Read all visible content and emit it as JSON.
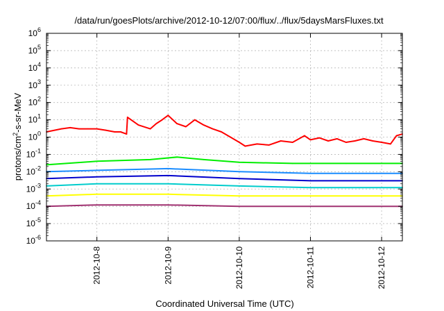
{
  "chart_data": {
    "type": "line",
    "title": "/data/run/goesPlots/archive/2012-10-12/07:00/flux/../flux/5daysMarsFluxes.txt",
    "xlabel": "Coordinated Universal Time (UTC)",
    "ylabel": {
      "prefix": "protons/cm",
      "sup": "2",
      "suffix": "-s-sr-MeV"
    },
    "y_scale": "log",
    "ylim": [
      1e-06,
      1000000.0
    ],
    "y_ticks": [
      {
        "base": "10",
        "exp": "-6",
        "value": 1e-06
      },
      {
        "base": "10",
        "exp": "-5",
        "value": 1e-05
      },
      {
        "base": "10",
        "exp": "-4",
        "value": 0.0001
      },
      {
        "base": "10",
        "exp": "-3",
        "value": 0.001
      },
      {
        "base": "10",
        "exp": "-2",
        "value": 0.01
      },
      {
        "base": "10",
        "exp": "-1",
        "value": 0.1
      },
      {
        "base": "10",
        "exp": "0",
        "value": 1
      },
      {
        "base": "10",
        "exp": "1",
        "value": 10
      },
      {
        "base": "10",
        "exp": "2",
        "value": 100
      },
      {
        "base": "10",
        "exp": "3",
        "value": 1000
      },
      {
        "base": "10",
        "exp": "4",
        "value": 10000
      },
      {
        "base": "10",
        "exp": "5",
        "value": 100000
      },
      {
        "base": "10",
        "exp": "6",
        "value": 1000000
      }
    ],
    "xlim": [
      "2012-10-07 07:00",
      "2012-10-12 07:00"
    ],
    "x_ticks": [
      {
        "label": "2012-10-8",
        "value": "2012-10-08"
      },
      {
        "label": "2012-10-9",
        "value": "2012-10-09"
      },
      {
        "label": "2012-10-10",
        "value": "2012-10-10"
      },
      {
        "label": "2012-10-11",
        "value": "2012-10-11"
      },
      {
        "label": "2012-10-12",
        "value": "2012-10-12"
      }
    ],
    "grid": true,
    "legend": false,
    "series": [
      {
        "color": "#ff0000",
        "x": [
          "2012-10-07 07:00",
          "2012-10-07 12:00",
          "2012-10-07 15:00",
          "2012-10-07 18:00",
          "2012-10-07 21:00",
          "2012-10-08 00:00",
          "2012-10-08 03:00",
          "2012-10-08 06:00",
          "2012-10-08 08:00",
          "2012-10-08 10:00",
          "2012-10-08 10:20",
          "2012-10-08 14:00",
          "2012-10-08 18:00",
          "2012-10-08 20:00",
          "2012-10-08 22:00",
          "2012-10-09 00:00",
          "2012-10-09 03:00",
          "2012-10-09 06:00",
          "2012-10-09 09:00",
          "2012-10-09 12:00",
          "2012-10-09 15:00",
          "2012-10-09 18:00",
          "2012-10-09 21:00",
          "2012-10-10 00:00",
          "2012-10-10 02:00",
          "2012-10-10 06:00",
          "2012-10-10 10:00",
          "2012-10-10 14:00",
          "2012-10-10 18:00",
          "2012-10-10 22:00",
          "2012-10-11 00:00",
          "2012-10-11 03:00",
          "2012-10-11 06:00",
          "2012-10-11 09:00",
          "2012-10-11 12:00",
          "2012-10-11 15:00",
          "2012-10-11 18:00",
          "2012-10-11 21:00",
          "2012-10-12 00:00",
          "2012-10-12 03:00",
          "2012-10-12 05:00",
          "2012-10-12 07:00"
        ],
        "y": [
          2.0,
          3.0,
          3.5,
          3.0,
          3.0,
          3.0,
          2.5,
          2.0,
          2.0,
          1.5,
          14,
          5.0,
          3.0,
          6.0,
          10,
          18,
          6.0,
          4.0,
          10,
          5.0,
          3.0,
          2.0,
          1.0,
          0.5,
          0.3,
          0.4,
          0.35,
          0.6,
          0.5,
          1.2,
          0.7,
          0.9,
          0.6,
          0.8,
          0.5,
          0.6,
          0.8,
          0.6,
          0.5,
          0.4,
          1.2,
          1.5
        ]
      },
      {
        "color": "#00ee00",
        "x": [
          "2012-10-07 07:00",
          "2012-10-08 00:00",
          "2012-10-08 18:00",
          "2012-10-09 03:00",
          "2012-10-09 12:00",
          "2012-10-10 00:00",
          "2012-10-10 18:00",
          "2012-10-11 12:00",
          "2012-10-12 07:00"
        ],
        "y": [
          0.025,
          0.04,
          0.05,
          0.07,
          0.05,
          0.035,
          0.03,
          0.03,
          0.03
        ]
      },
      {
        "color": "#1a8cff",
        "x": [
          "2012-10-07 07:00",
          "2012-10-08 00:00",
          "2012-10-09 00:00",
          "2012-10-10 00:00",
          "2012-10-11 00:00",
          "2012-10-12 07:00"
        ],
        "y": [
          0.01,
          0.012,
          0.015,
          0.01,
          0.008,
          0.008
        ]
      },
      {
        "color": "#0000cc",
        "x": [
          "2012-10-07 07:00",
          "2012-10-08 00:00",
          "2012-10-09 00:00",
          "2012-10-10 00:00",
          "2012-10-11 00:00",
          "2012-10-12 07:00"
        ],
        "y": [
          0.004,
          0.005,
          0.006,
          0.004,
          0.003,
          0.003
        ]
      },
      {
        "color": "#00cccc",
        "x": [
          "2012-10-07 07:00",
          "2012-10-08 00:00",
          "2012-10-09 00:00",
          "2012-10-10 00:00",
          "2012-10-11 00:00",
          "2012-10-12 07:00"
        ],
        "y": [
          0.0015,
          0.002,
          0.002,
          0.0015,
          0.0012,
          0.0012
        ]
      },
      {
        "color": "#ffff00",
        "x": [
          "2012-10-07 07:00",
          "2012-10-08 00:00",
          "2012-10-09 00:00",
          "2012-10-10 00:00",
          "2012-10-11 00:00",
          "2012-10-12 07:00"
        ],
        "y": [
          0.0004,
          0.0005,
          0.0005,
          0.0004,
          0.0004,
          0.0004
        ]
      },
      {
        "color": "#a03070",
        "x": [
          "2012-10-07 07:00",
          "2012-10-08 00:00",
          "2012-10-09 00:00",
          "2012-10-10 00:00",
          "2012-10-11 00:00",
          "2012-10-12 07:00"
        ],
        "y": [
          0.0001,
          0.00012,
          0.00012,
          0.0001,
          0.0001,
          0.0001
        ]
      }
    ]
  }
}
